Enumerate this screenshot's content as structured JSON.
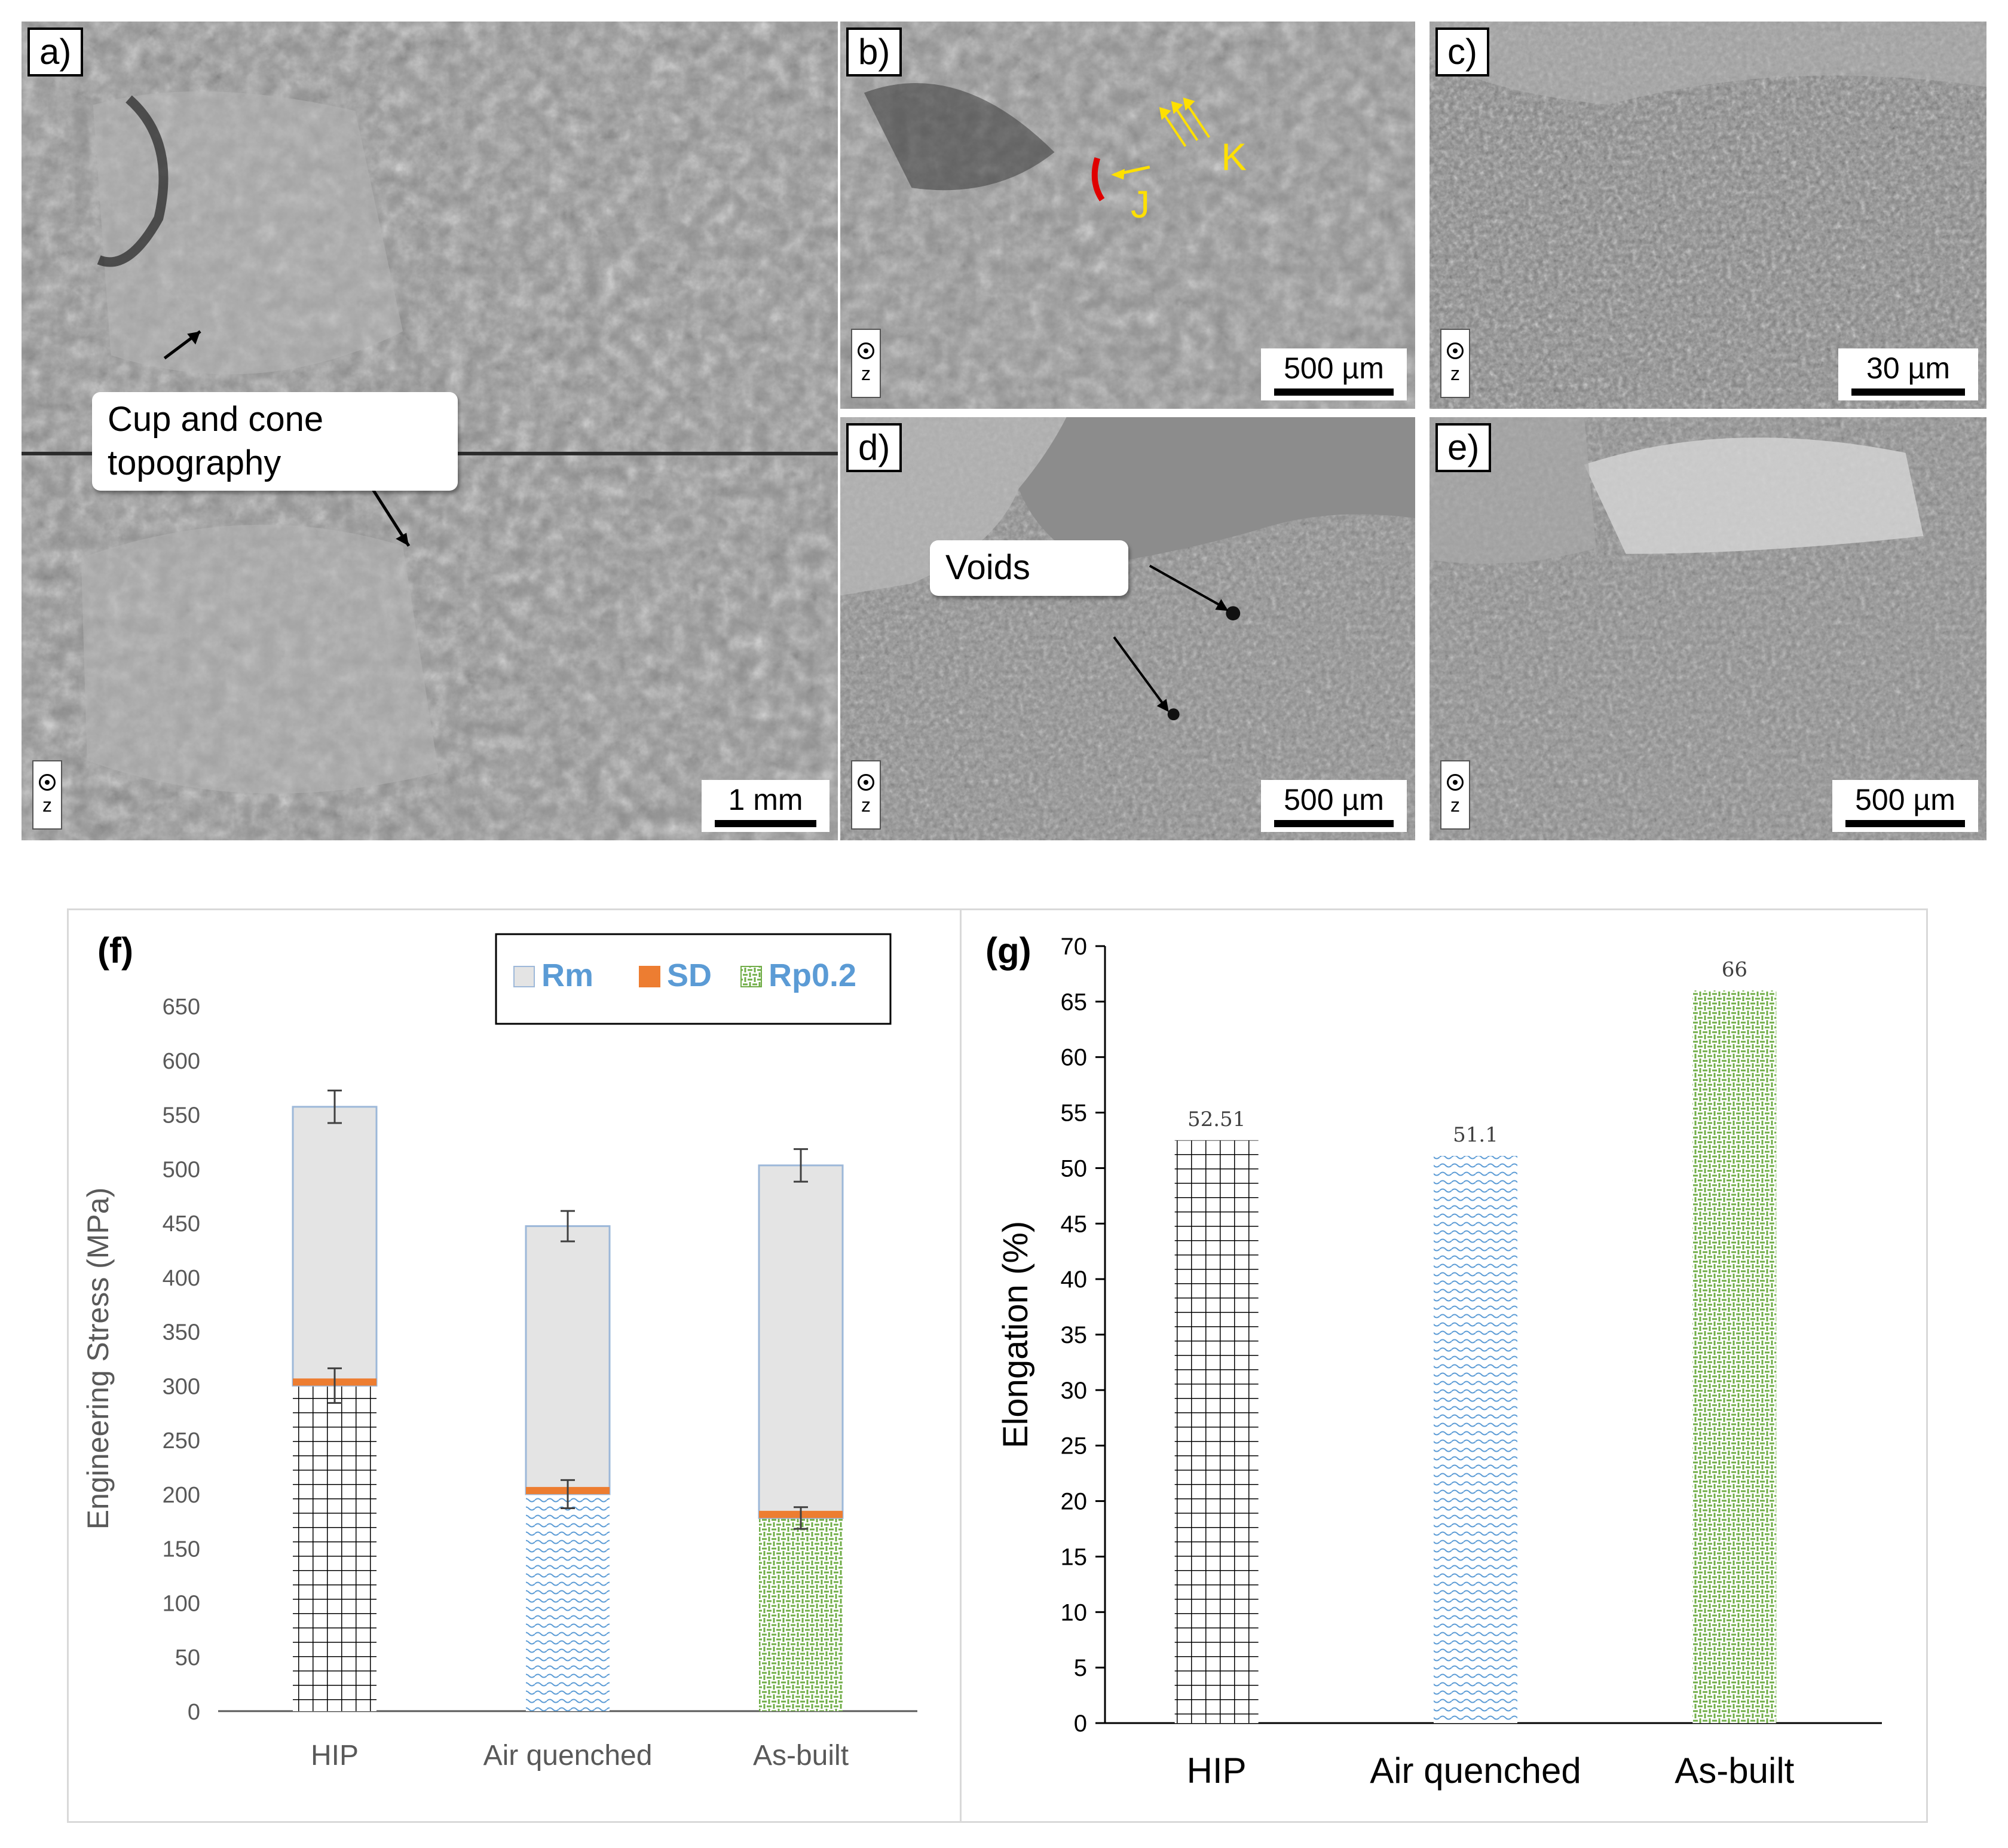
{
  "panels": {
    "a": {
      "label": "a)",
      "scale": "1 mm",
      "callout": "Cup and cone\ntopography",
      "axis": "z"
    },
    "b": {
      "label": "b)",
      "scale": "500 µm",
      "markers": [
        "J",
        "K"
      ],
      "axis": "z"
    },
    "c": {
      "label": "c)",
      "scale": "30 µm",
      "axis": "z"
    },
    "d": {
      "label": "d)",
      "scale": "500 µm",
      "callout": "Voids",
      "axis": "z"
    },
    "e": {
      "label": "e)",
      "scale": "500 µm",
      "axis": "z"
    }
  },
  "chart_data": [
    {
      "panel": "(f)",
      "type": "bar",
      "ylabel": "Engineering Stress (MPa)",
      "ylim": [
        0,
        650
      ],
      "yticks": [
        0,
        50,
        100,
        150,
        200,
        250,
        300,
        350,
        400,
        450,
        500,
        550,
        600,
        650
      ],
      "categories": [
        "HIP",
        "Air quenched",
        "As-built"
      ],
      "legend": [
        "Rm",
        "SD",
        "Rp0.2"
      ],
      "legend_position": "top-right",
      "series": [
        {
          "name": "Rp0.2",
          "values": [
            300,
            200,
            178
          ],
          "errors": [
            16,
            13,
            10
          ]
        },
        {
          "name": "Rm",
          "values": [
            557,
            447,
            503
          ],
          "errors": [
            15,
            14,
            15
          ]
        }
      ],
      "colors": {
        "HIP": "#000000",
        "Air quenched": "#5b9bd5",
        "As-built": "#70ad47",
        "Rm_fill": "#e4e4e4",
        "Rm_edge": "#9db8d9",
        "SD": "#ed7d31"
      }
    },
    {
      "panel": "(g)",
      "type": "bar",
      "ylabel": "Elongation (%)",
      "ylim": [
        0,
        70
      ],
      "yticks": [
        0,
        5,
        10,
        15,
        20,
        25,
        30,
        35,
        40,
        45,
        50,
        55,
        60,
        65,
        70
      ],
      "categories": [
        "HIP",
        "Air quenched",
        "As-built"
      ],
      "values": [
        52.51,
        51.1,
        66
      ],
      "value_labels": [
        "52.51",
        "51.1",
        "66"
      ],
      "colors": [
        "#000000",
        "#5b9bd5",
        "#70ad47"
      ]
    }
  ]
}
